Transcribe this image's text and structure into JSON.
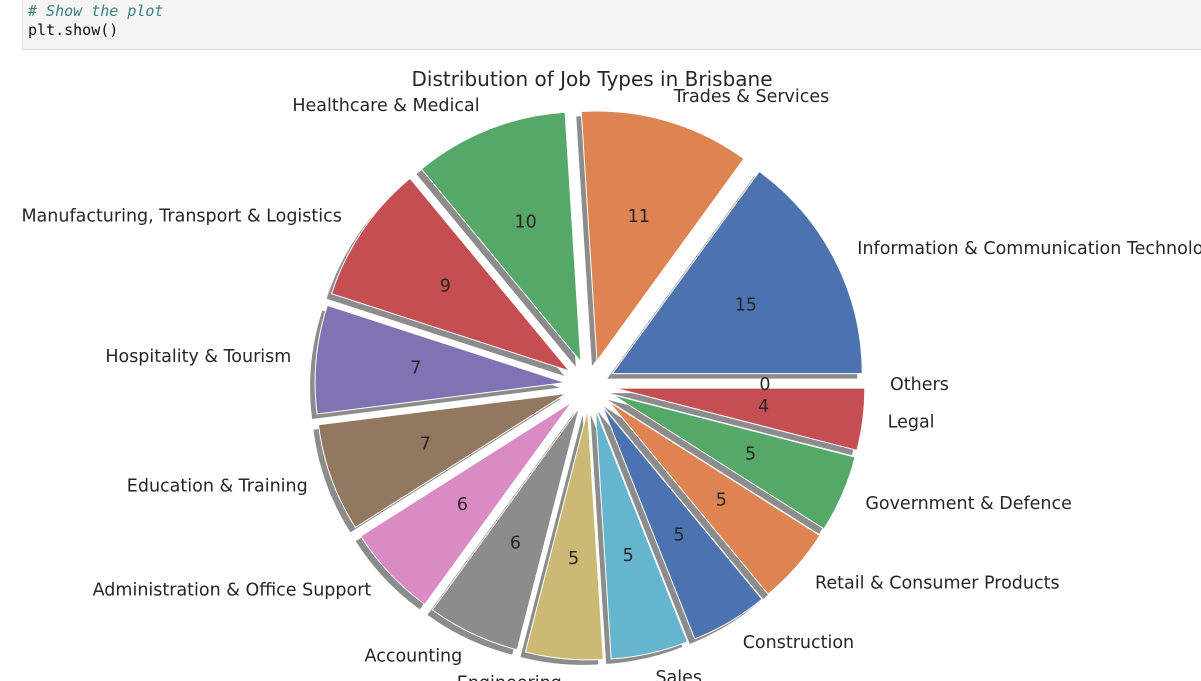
{
  "code_cell": {
    "comment": "# Show the plot",
    "code": "plt.show()"
  },
  "chart_data": {
    "type": "pie",
    "title": "Distribution of Job Types in Brisbane",
    "categories": [
      "Information & Communication Technology",
      "Trades & Services",
      "Healthcare & Medical",
      "Manufacturing, Transport & Logistics",
      "Hospitality & Tourism",
      "Education & Training",
      "Administration & Office Support",
      "Accounting",
      "Engineering",
      "Sales",
      "Construction",
      "Retail & Consumer Products",
      "Government & Defence",
      "Legal",
      "Others"
    ],
    "values": [
      15,
      11,
      10,
      9,
      7,
      7,
      6,
      6,
      5,
      5,
      5,
      5,
      5,
      4,
      0
    ],
    "colors": [
      "#4c72b0",
      "#dd8452",
      "#55a868",
      "#c44e52",
      "#8172b3",
      "#937860",
      "#da8bc3",
      "#8c8c8c",
      "#ccb974",
      "#64b5cd",
      "#4c72b0",
      "#dd8452",
      "#55a868",
      "#c44e52",
      "#8172b3"
    ],
    "explode": true,
    "shadow": true,
    "start_angle": 0,
    "direction": "counterclockwise"
  }
}
